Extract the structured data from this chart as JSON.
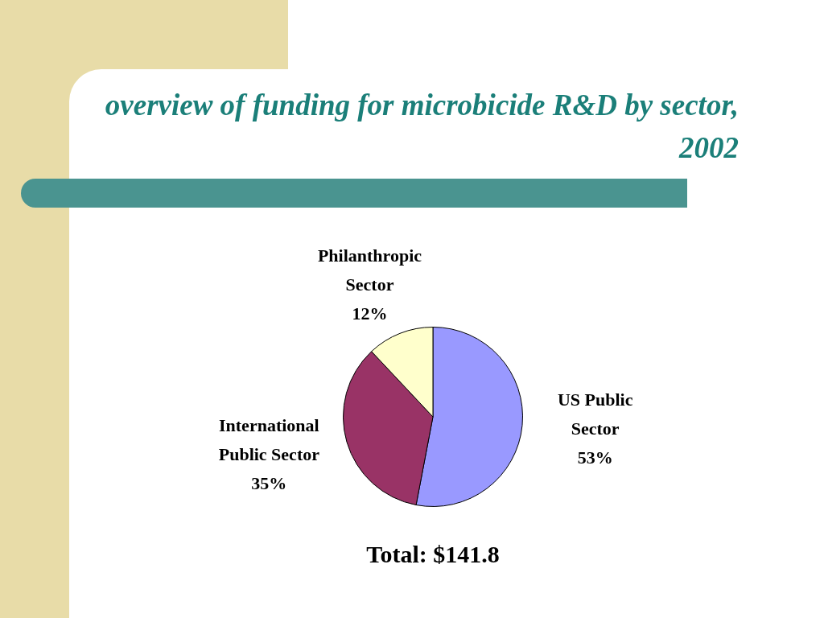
{
  "chart_data": {
    "type": "pie",
    "title": "overview of funding for microbicide R&D by sector, 2002",
    "categories": [
      "US Public Sector",
      "International Public Sector",
      "Philanthropic Sector"
    ],
    "values": [
      53,
      35,
      12
    ],
    "value_labels": [
      "53%",
      "35%",
      "12%"
    ],
    "colors": [
      "#9999ff",
      "#993366",
      "#ffffcc"
    ],
    "annotations": [
      "Total: $141.8"
    ],
    "legend": false
  }
}
